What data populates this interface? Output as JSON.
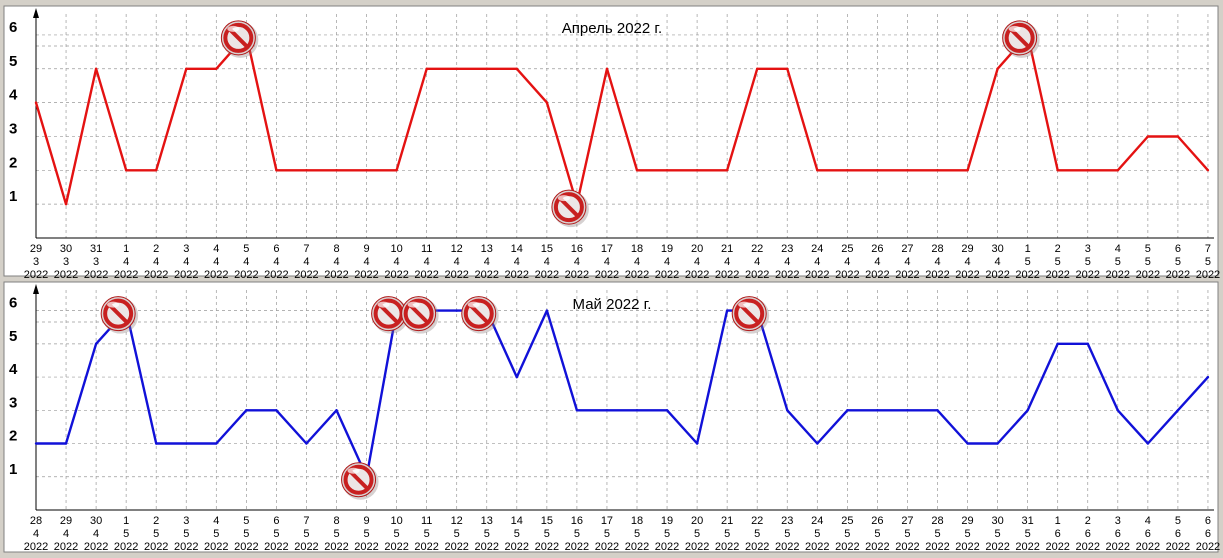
{
  "chart_data": [
    {
      "type": "line",
      "title": "Апрель 2022 г.",
      "color": "#e41212",
      "ylim": [
        0,
        6.5
      ],
      "yticks": [
        1,
        2,
        3,
        4,
        5,
        6
      ],
      "grid": true,
      "x_day": [
        "29",
        "30",
        "31",
        "1",
        "2",
        "3",
        "4",
        "5",
        "6",
        "7",
        "8",
        "9",
        "10",
        "11",
        "12",
        "13",
        "14",
        "15",
        "16",
        "17",
        "18",
        "19",
        "20",
        "21",
        "22",
        "23",
        "24",
        "25",
        "26",
        "27",
        "28",
        "29",
        "30",
        "1",
        "2",
        "3",
        "4",
        "5",
        "6",
        "7"
      ],
      "x_month": [
        "3",
        "3",
        "3",
        "4",
        "4",
        "4",
        "4",
        "4",
        "4",
        "4",
        "4",
        "4",
        "4",
        "4",
        "4",
        "4",
        "4",
        "4",
        "4",
        "4",
        "4",
        "4",
        "4",
        "4",
        "4",
        "4",
        "4",
        "4",
        "4",
        "4",
        "4",
        "4",
        "4",
        "5",
        "5",
        "5",
        "5",
        "5",
        "5",
        "5"
      ],
      "x_year": "2022",
      "values": [
        4,
        1,
        5,
        2,
        2,
        5,
        5,
        6,
        2,
        2,
        2,
        2,
        2,
        5,
        5,
        5,
        5,
        4,
        1,
        5,
        2,
        2,
        2,
        2,
        5,
        5,
        2,
        2,
        2,
        2,
        2,
        2,
        5,
        6,
        2,
        2,
        2,
        3,
        3,
        2
      ],
      "markers_at": [
        7,
        18,
        33
      ],
      "marker": "forbidden-sign"
    },
    {
      "type": "line",
      "title": "Май 2022 г.",
      "color": "#1111d8",
      "ylim": [
        0,
        6.5
      ],
      "yticks": [
        1,
        2,
        3,
        4,
        5,
        6
      ],
      "grid": true,
      "x_day": [
        "28",
        "29",
        "30",
        "1",
        "2",
        "3",
        "4",
        "5",
        "6",
        "7",
        "8",
        "9",
        "10",
        "11",
        "12",
        "13",
        "14",
        "15",
        "16",
        "17",
        "18",
        "19",
        "20",
        "21",
        "22",
        "23",
        "24",
        "25",
        "26",
        "27",
        "28",
        "29",
        "30",
        "31",
        "1",
        "2",
        "3",
        "4",
        "5",
        "6"
      ],
      "x_month": [
        "4",
        "4",
        "4",
        "5",
        "5",
        "5",
        "5",
        "5",
        "5",
        "5",
        "5",
        "5",
        "5",
        "5",
        "5",
        "5",
        "5",
        "5",
        "5",
        "5",
        "5",
        "5",
        "5",
        "5",
        "5",
        "5",
        "5",
        "5",
        "5",
        "5",
        "5",
        "5",
        "5",
        "5",
        "6",
        "6",
        "6",
        "6",
        "6",
        "6"
      ],
      "x_year": "2022",
      "values": [
        2,
        2,
        5,
        6,
        2,
        2,
        2,
        3,
        3,
        2,
        3,
        1,
        6,
        6,
        6,
        6,
        4,
        6,
        3,
        3,
        3,
        3,
        2,
        6,
        6,
        3,
        2,
        3,
        3,
        3,
        3,
        2,
        2,
        3,
        5,
        5,
        3,
        2,
        3,
        4
      ],
      "markers_at": [
        3,
        11,
        12,
        13,
        15,
        24
      ],
      "marker": "forbidden-sign"
    }
  ]
}
